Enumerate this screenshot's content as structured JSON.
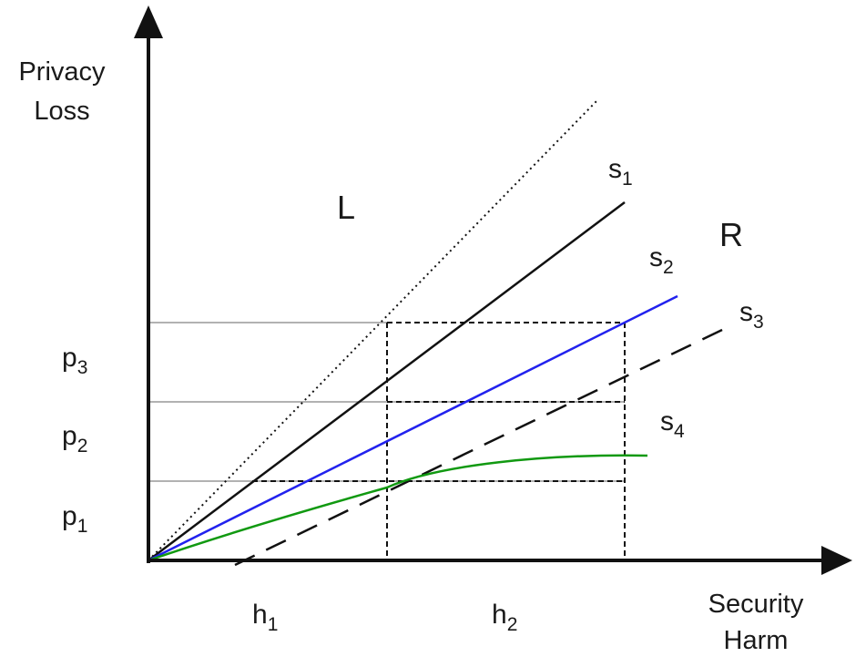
{
  "axes": {
    "y_title_line1": "Privacy",
    "y_title_line2": "Loss",
    "x_title_line1": "Security",
    "x_title_line2": "Harm"
  },
  "regions": {
    "left": "L",
    "right": "R"
  },
  "curves": [
    {
      "base": "s",
      "sub": "1",
      "color": "#111111",
      "style": "solid"
    },
    {
      "base": "s",
      "sub": "2",
      "color": "#2222ee",
      "style": "solid"
    },
    {
      "base": "s",
      "sub": "3",
      "color": "#111111",
      "style": "dashed"
    },
    {
      "base": "s",
      "sub": "4",
      "color": "#119911",
      "style": "solid"
    }
  ],
  "privacy_levels": [
    {
      "base": "p",
      "sub": "1"
    },
    {
      "base": "p",
      "sub": "2"
    },
    {
      "base": "p",
      "sub": "3"
    }
  ],
  "harm_levels": [
    {
      "base": "h",
      "sub": "1"
    },
    {
      "base": "h",
      "sub": "2"
    }
  ]
}
